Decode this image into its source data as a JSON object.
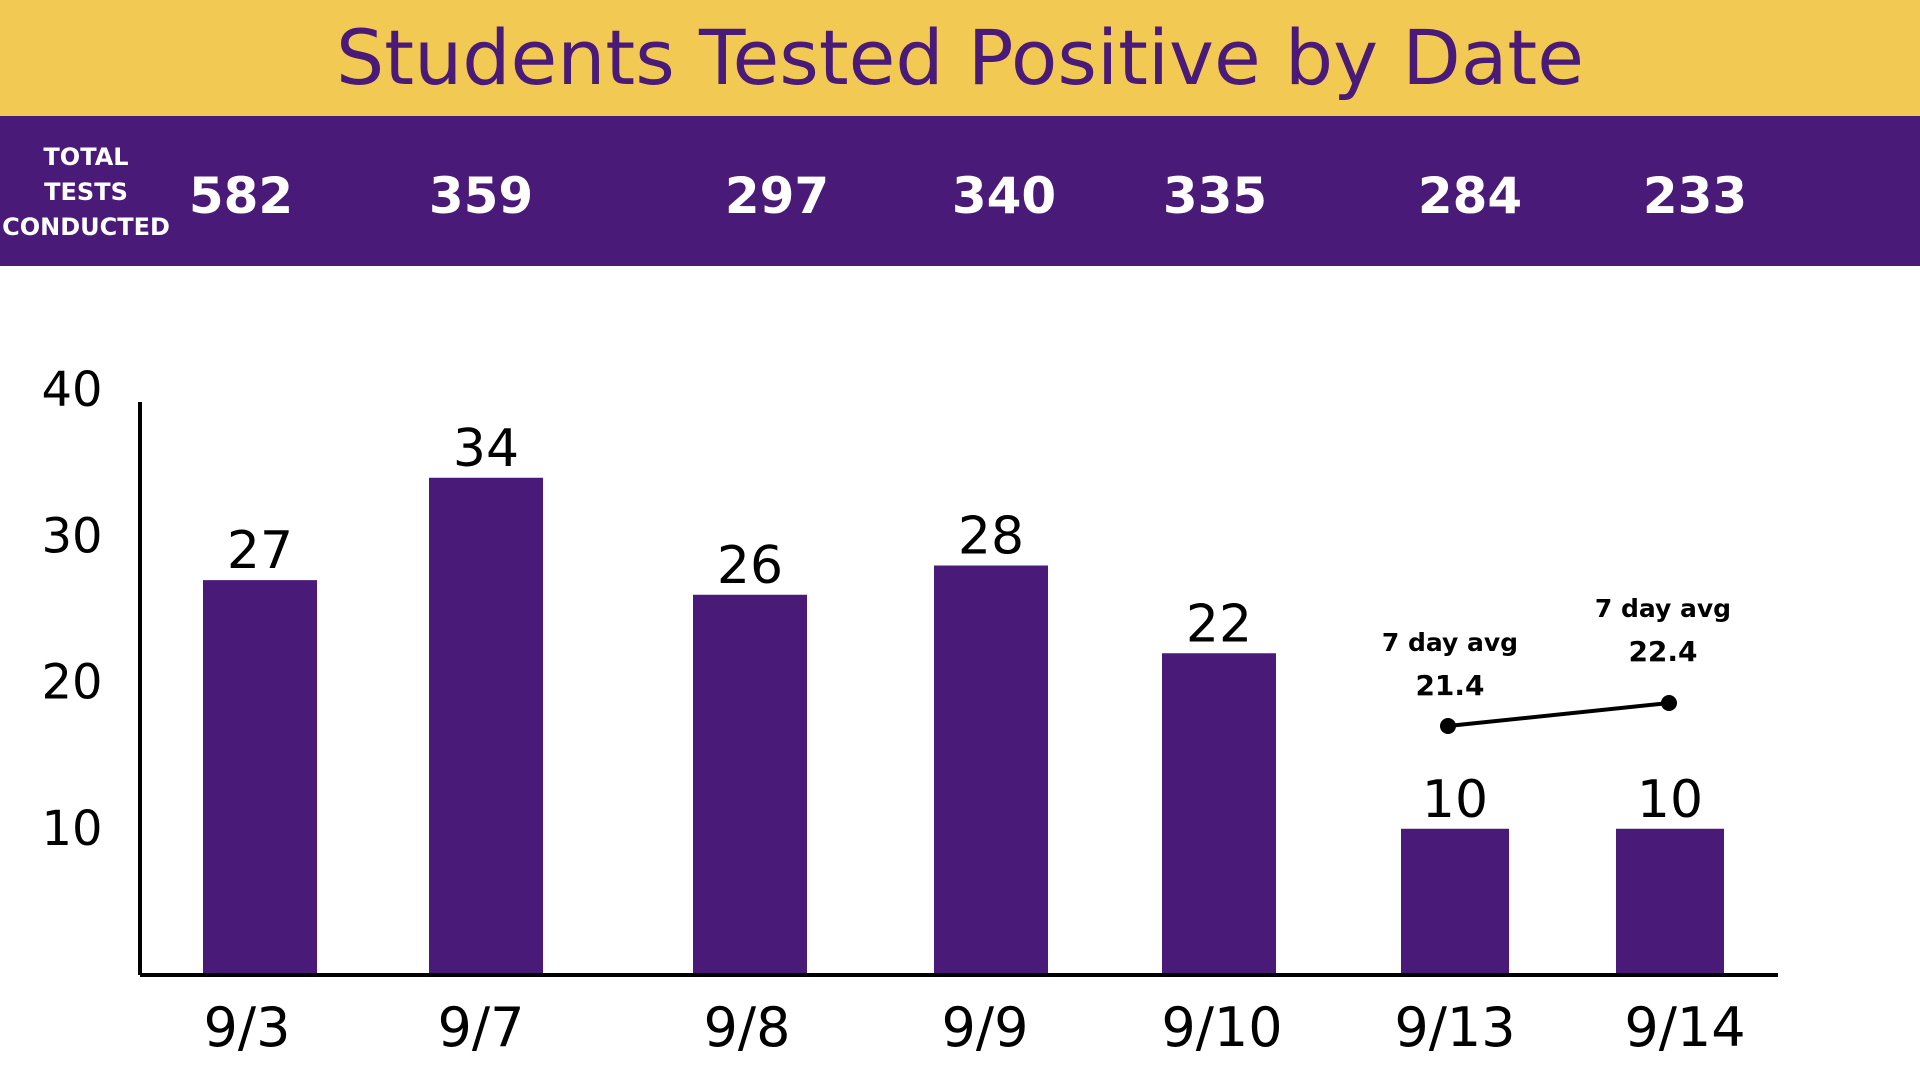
{
  "header": {
    "title": "Students Tested Positive by Date",
    "tests_label_lines": [
      "TOTAL",
      "TESTS",
      "CONDUCTED"
    ],
    "tests": [
      "582",
      "359",
      "297",
      "340",
      "335",
      "284",
      "233"
    ]
  },
  "colors": {
    "title_bar": "#F2C953",
    "title_text": "#4A1A78",
    "bar": "#4A1A78",
    "axis": "#000000"
  },
  "chart_data": {
    "type": "bar",
    "title": "Students Tested Positive by Date",
    "categories": [
      "9/3",
      "9/7",
      "9/8",
      "9/9",
      "9/10",
      "9/13",
      "9/14"
    ],
    "values": [
      27,
      34,
      26,
      28,
      22,
      10,
      10
    ],
    "data_labels": [
      "27",
      "34",
      "26",
      "28",
      "22",
      "10",
      "10"
    ],
    "yticks": [
      10,
      20,
      30,
      40
    ],
    "ylim": [
      0,
      40
    ],
    "grid": false,
    "seven_day_avg": {
      "label": "7 day avg",
      "points": [
        {
          "category": "9/13",
          "value": 21.4
        },
        {
          "category": "9/14",
          "value": 22.4
        }
      ]
    }
  }
}
